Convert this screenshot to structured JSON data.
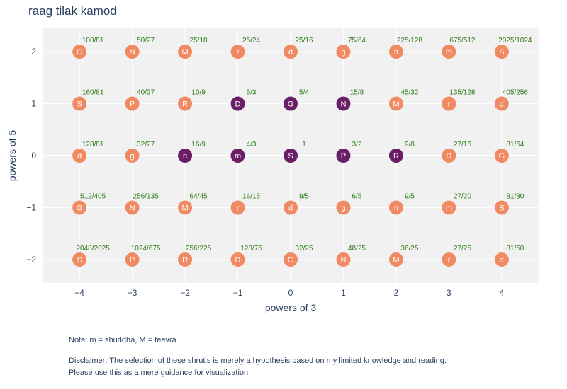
{
  "colors": {
    "selected": "#6b1e68",
    "unselected": "#f08a62",
    "plot_bg": "#f1f1f1",
    "ratio_text": "#2e7d1a",
    "text": "#2a3f5f"
  },
  "notes": {
    "note": "Note: m = shuddha, M = teevra",
    "disclaimer_line1": "Disclaimer: The selection of these shrutis is merely a hypothesis based on my limited knowledge and reading.",
    "disclaimer_line2": "Please use this as a mere guidance for visualization."
  },
  "chart_data": {
    "type": "scatter",
    "title": "raag tilak kamod",
    "xlabel": "powers of 3",
    "ylabel": "powers of 5",
    "xlim": [
      -4.7,
      4.7
    ],
    "ylim": [
      -2.45,
      2.45
    ],
    "x_ticks": [
      -4,
      -3,
      -2,
      -1,
      0,
      1,
      2,
      3,
      4
    ],
    "y_ticks": [
      -2,
      -1,
      0,
      1,
      2
    ],
    "grid": true,
    "legend": "none",
    "points": [
      {
        "x": -4,
        "y": 2,
        "swara": "G",
        "ratio": "100/81",
        "selected": false
      },
      {
        "x": -3,
        "y": 2,
        "swara": "N",
        "ratio": "50/27",
        "selected": false
      },
      {
        "x": -2,
        "y": 2,
        "swara": "M",
        "ratio": "25/18",
        "selected": false
      },
      {
        "x": -1,
        "y": 2,
        "swara": "r",
        "ratio": "25/24",
        "selected": false
      },
      {
        "x": 0,
        "y": 2,
        "swara": "d",
        "ratio": "25/16",
        "selected": false
      },
      {
        "x": 1,
        "y": 2,
        "swara": "g",
        "ratio": "75/64",
        "selected": false
      },
      {
        "x": 2,
        "y": 2,
        "swara": "n",
        "ratio": "225/128",
        "selected": false
      },
      {
        "x": 3,
        "y": 2,
        "swara": "m",
        "ratio": "675/512",
        "selected": false
      },
      {
        "x": 4,
        "y": 2,
        "swara": "S",
        "ratio": "2025/1024",
        "selected": false
      },
      {
        "x": -4,
        "y": 1,
        "swara": "S",
        "ratio": "160/81",
        "selected": false
      },
      {
        "x": -3,
        "y": 1,
        "swara": "P",
        "ratio": "40/27",
        "selected": false
      },
      {
        "x": -2,
        "y": 1,
        "swara": "R",
        "ratio": "10/9",
        "selected": false
      },
      {
        "x": -1,
        "y": 1,
        "swara": "D",
        "ratio": "5/3",
        "selected": true
      },
      {
        "x": 0,
        "y": 1,
        "swara": "G",
        "ratio": "5/4",
        "selected": true
      },
      {
        "x": 1,
        "y": 1,
        "swara": "N",
        "ratio": "15/8",
        "selected": true
      },
      {
        "x": 2,
        "y": 1,
        "swara": "M",
        "ratio": "45/32",
        "selected": false
      },
      {
        "x": 3,
        "y": 1,
        "swara": "r",
        "ratio": "135/128",
        "selected": false
      },
      {
        "x": 4,
        "y": 1,
        "swara": "d",
        "ratio": "405/256",
        "selected": false
      },
      {
        "x": -4,
        "y": 0,
        "swara": "d",
        "ratio": "128/81",
        "selected": false
      },
      {
        "x": -3,
        "y": 0,
        "swara": "g",
        "ratio": "32/27",
        "selected": false
      },
      {
        "x": -2,
        "y": 0,
        "swara": "n",
        "ratio": "16/9",
        "selected": true
      },
      {
        "x": -1,
        "y": 0,
        "swara": "m",
        "ratio": "4/3",
        "selected": true
      },
      {
        "x": 0,
        "y": 0,
        "swara": "S",
        "ratio": "1",
        "selected": true
      },
      {
        "x": 1,
        "y": 0,
        "swara": "P",
        "ratio": "3/2",
        "selected": true
      },
      {
        "x": 2,
        "y": 0,
        "swara": "R",
        "ratio": "9/8",
        "selected": true
      },
      {
        "x": 3,
        "y": 0,
        "swara": "D",
        "ratio": "27/16",
        "selected": false
      },
      {
        "x": 4,
        "y": 0,
        "swara": "G",
        "ratio": "81/64",
        "selected": false
      },
      {
        "x": -4,
        "y": -1,
        "swara": "G",
        "ratio": "512/405",
        "selected": false
      },
      {
        "x": -3,
        "y": -1,
        "swara": "N",
        "ratio": "256/135",
        "selected": false
      },
      {
        "x": -2,
        "y": -1,
        "swara": "M",
        "ratio": "64/45",
        "selected": false
      },
      {
        "x": -1,
        "y": -1,
        "swara": "r",
        "ratio": "16/15",
        "selected": false
      },
      {
        "x": 0,
        "y": -1,
        "swara": "d",
        "ratio": "8/5",
        "selected": false
      },
      {
        "x": 1,
        "y": -1,
        "swara": "g",
        "ratio": "6/5",
        "selected": false
      },
      {
        "x": 2,
        "y": -1,
        "swara": "n",
        "ratio": "9/5",
        "selected": false
      },
      {
        "x": 3,
        "y": -1,
        "swara": "m",
        "ratio": "27/20",
        "selected": false
      },
      {
        "x": 4,
        "y": -1,
        "swara": "S",
        "ratio": "81/80",
        "selected": false
      },
      {
        "x": -4,
        "y": -2,
        "swara": "S",
        "ratio": "2048/2025",
        "selected": false
      },
      {
        "x": -3,
        "y": -2,
        "swara": "P",
        "ratio": "1024/675",
        "selected": false
      },
      {
        "x": -2,
        "y": -2,
        "swara": "R",
        "ratio": "256/225",
        "selected": false
      },
      {
        "x": -1,
        "y": -2,
        "swara": "D",
        "ratio": "128/75",
        "selected": false
      },
      {
        "x": 0,
        "y": -2,
        "swara": "G",
        "ratio": "32/25",
        "selected": false
      },
      {
        "x": 1,
        "y": -2,
        "swara": "N",
        "ratio": "48/25",
        "selected": false
      },
      {
        "x": 2,
        "y": -2,
        "swara": "M",
        "ratio": "36/25",
        "selected": false
      },
      {
        "x": 3,
        "y": -2,
        "swara": "r",
        "ratio": "27/25",
        "selected": false
      },
      {
        "x": 4,
        "y": -2,
        "swara": "d",
        "ratio": "81/50",
        "selected": false
      }
    ]
  }
}
